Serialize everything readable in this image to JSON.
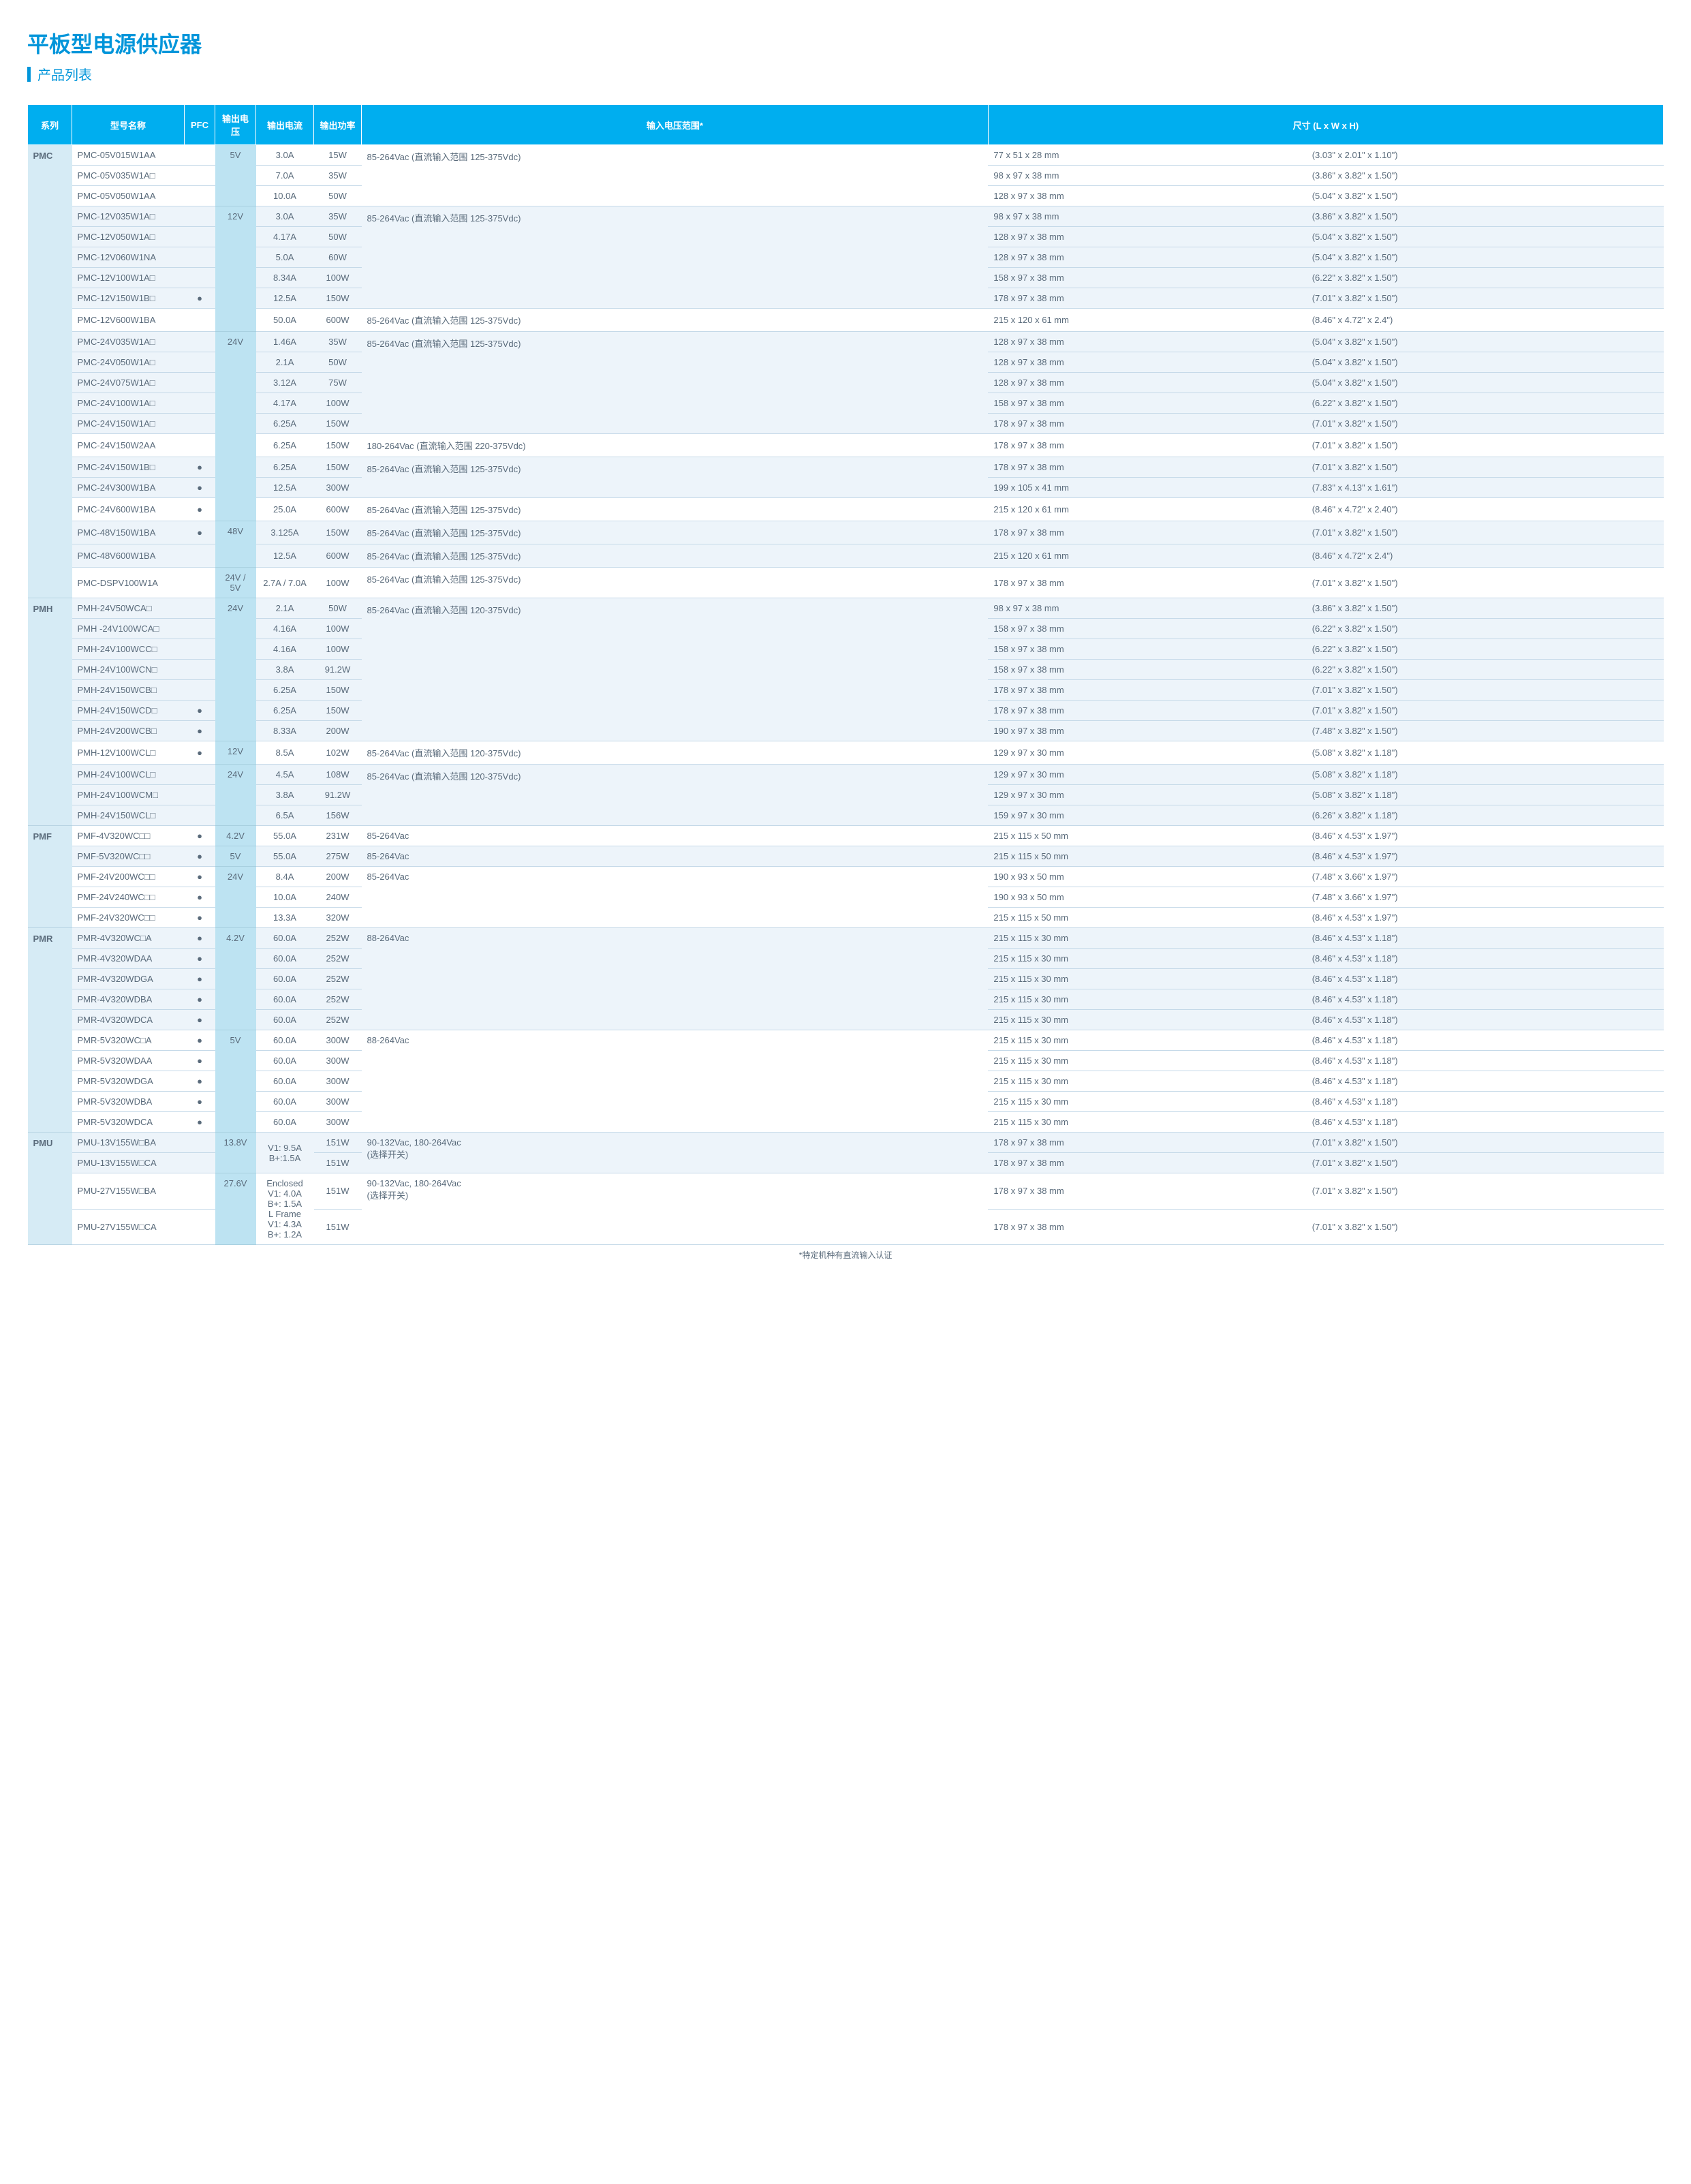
{
  "title": "平板型电源供应器",
  "subtitle": "产品列表",
  "footnote": "*特定机种有直流输入认证",
  "headers": {
    "series": "系列",
    "model": "型号名称",
    "pfc": "PFC",
    "voltage": "输出电压",
    "current": "输出电流",
    "power": "输出功率",
    "input": "输入电压范围*",
    "dim": "尺寸 (L x W x H)"
  },
  "colors": {
    "primary": "#0095da",
    "header_bg": "#00aeef",
    "series_bg": "#d6ebf5",
    "voltage_bg": "#bde3f2",
    "alt_row": "#edf4fa",
    "border": "#c5d9e8",
    "text": "#5a6b7b"
  },
  "series": [
    {
      "name": "PMC",
      "voltageGroups": [
        {
          "voltage": "5V",
          "rows": [
            {
              "model": "PMC-05V015W1AA",
              "pfc": "",
              "current": "3.0A",
              "power": "15W",
              "input": "85-264Vac (直流输入范围 125-375Vdc)",
              "input_span": 3,
              "mm": "77 x 51 x 28 mm",
              "in": "(3.03\" x 2.01\" x 1.10\")"
            },
            {
              "model": "PMC-05V035W1A□",
              "pfc": "",
              "current": "7.0A",
              "power": "35W",
              "mm": "98 x 97 x 38 mm",
              "in": "(3.86\" x 3.82\" x 1.50\")"
            },
            {
              "model": "PMC-05V050W1AA",
              "pfc": "",
              "current": "10.0A",
              "power": "50W",
              "mm": "128 x 97 x 38 mm",
              "in": "(5.04\" x 3.82\" x 1.50\")"
            }
          ]
        },
        {
          "voltage": "12V",
          "rows": [
            {
              "model": "PMC-12V035W1A□",
              "pfc": "",
              "current": "3.0A",
              "power": "35W",
              "input": "85-264Vac (直流输入范围 125-375Vdc)",
              "input_span": 5,
              "mm": "98 x 97 x 38 mm",
              "in": "(3.86\" x 3.82\" x 1.50\")",
              "alt": true
            },
            {
              "model": "PMC-12V050W1A□",
              "pfc": "",
              "current": "4.17A",
              "power": "50W",
              "mm": "128 x 97 x 38 mm",
              "in": "(5.04\" x 3.82\" x 1.50\")",
              "alt": true
            },
            {
              "model": "PMC-12V060W1NA",
              "pfc": "",
              "current": "5.0A",
              "power": "60W",
              "mm": "128 x 97 x 38 mm",
              "in": "(5.04\" x 3.82\" x 1.50\")",
              "alt": true
            },
            {
              "model": "PMC-12V100W1A□",
              "pfc": "",
              "current": "8.34A",
              "power": "100W",
              "mm": "158 x 97 x 38 mm",
              "in": "(6.22\" x 3.82\" x 1.50\")",
              "alt": true
            },
            {
              "model": "PMC-12V150W1B□",
              "pfc": "●",
              "current": "12.5A",
              "power": "150W",
              "mm": "178 x 97 x 38 mm",
              "in": "(7.01\" x 3.82\" x 1.50\")",
              "alt": true
            },
            {
              "model": "PMC-12V600W1BA",
              "pfc": "",
              "current": "50.0A",
              "power": "600W",
              "input": "85-264Vac (直流输入范围 125-375Vdc)",
              "input_span": 1,
              "mm": "215 x 120 x 61 mm",
              "in": "(8.46\" x 4.72\" x 2.4\")"
            }
          ]
        },
        {
          "voltage": "24V",
          "rows": [
            {
              "model": "PMC-24V035W1A□",
              "pfc": "",
              "current": "1.46A",
              "power": "35W",
              "input": "85-264Vac (直流输入范围 125-375Vdc)",
              "input_span": 5,
              "mm": "128 x 97 x 38 mm",
              "in": "(5.04\" x 3.82\" x 1.50\")",
              "alt": true
            },
            {
              "model": "PMC-24V050W1A□",
              "pfc": "",
              "current": "2.1A",
              "power": "50W",
              "mm": "128 x 97 x 38 mm",
              "in": "(5.04\" x 3.82\" x 1.50\")",
              "alt": true
            },
            {
              "model": "PMC-24V075W1A□",
              "pfc": "",
              "current": "3.12A",
              "power": "75W",
              "mm": "128 x 97 x 38 mm",
              "in": "(5.04\" x 3.82\" x 1.50\")",
              "alt": true
            },
            {
              "model": "PMC-24V100W1A□",
              "pfc": "",
              "current": "4.17A",
              "power": "100W",
              "mm": "158 x 97 x 38 mm",
              "in": "(6.22\" x 3.82\" x 1.50\")",
              "alt": true
            },
            {
              "model": "PMC-24V150W1A□",
              "pfc": "",
              "current": "6.25A",
              "power": "150W",
              "mm": "178 x 97 x 38 mm",
              "in": "(7.01\" x 3.82\" x 1.50\")",
              "alt": true
            },
            {
              "model": "PMC-24V150W2AA",
              "pfc": "",
              "current": "6.25A",
              "power": "150W",
              "input": "180-264Vac (直流输入范围 220-375Vdc)",
              "input_span": 1,
              "mm": "178 x 97 x 38 mm",
              "in": "(7.01\" x 3.82\" x 1.50\")"
            },
            {
              "model": "PMC-24V150W1B□",
              "pfc": "●",
              "current": "6.25A",
              "power": "150W",
              "input": "85-264Vac (直流输入范围 125-375Vdc)",
              "input_span": 2,
              "mm": "178 x 97 x 38 mm",
              "in": "(7.01\" x 3.82\" x 1.50\")",
              "alt": true
            },
            {
              "model": "PMC-24V300W1BA",
              "pfc": "●",
              "current": "12.5A",
              "power": "300W",
              "mm": "199 x 105 x 41 mm",
              "in": "(7.83\" x 4.13\" x 1.61\")",
              "alt": true
            },
            {
              "model": "PMC-24V600W1BA",
              "pfc": "●",
              "current": "25.0A",
              "power": "600W",
              "input": "85-264Vac (直流输入范围 125-375Vdc)",
              "input_span": 1,
              "mm": "215 x 120 x 61 mm",
              "in": "(8.46\" x 4.72\" x 2.40\")"
            }
          ]
        },
        {
          "voltage": "48V",
          "rows": [
            {
              "model": "PMC-48V150W1BA",
              "pfc": "●",
              "current": "3.125A",
              "power": "150W",
              "input": "85-264Vac (直流输入范围 125-375Vdc)",
              "input_span": 1,
              "mm": "178 x 97 x 38 mm",
              "in": "(7.01\" x 3.82\" x 1.50\")",
              "alt": true
            },
            {
              "model": "PMC-48V600W1BA",
              "pfc": "",
              "current": "12.5A",
              "power": "600W",
              "input": "85-264Vac (直流输入范围 125-375Vdc)",
              "input_span": 1,
              "mm": "215 x 120 x 61 mm",
              "in": "(8.46\" x 4.72\" x 2.4\")",
              "alt": true
            }
          ]
        },
        {
          "voltage": "24V / 5V",
          "rows": [
            {
              "model": "PMC-DSPV100W1A",
              "pfc": "",
              "current": "2.7A / 7.0A",
              "power": "100W",
              "input": "85-264Vac (直流输入范围 125-375Vdc)",
              "input_span": 1,
              "mm": "178 x 97 x 38 mm",
              "in": "(7.01\" x 3.82\" x 1.50\")"
            }
          ]
        }
      ]
    },
    {
      "name": "PMH",
      "voltageGroups": [
        {
          "voltage": "24V",
          "rows": [
            {
              "model": "PMH-24V50WCA□",
              "pfc": "",
              "current": "2.1A",
              "power": "50W",
              "input": "85-264Vac (直流输入范围 120-375Vdc)",
              "input_span": 7,
              "mm": "98 x 97 x 38 mm",
              "in": "(3.86\" x 3.82\" x 1.50\")",
              "alt": true
            },
            {
              "model": "PMH -24V100WCA□",
              "pfc": "",
              "current": "4.16A",
              "power": "100W",
              "mm": "158 x 97 x 38 mm",
              "in": "(6.22\" x 3.82\" x 1.50\")",
              "alt": true
            },
            {
              "model": "PMH-24V100WCC□",
              "pfc": "",
              "current": "4.16A",
              "power": "100W",
              "mm": "158 x 97 x 38 mm",
              "in": "(6.22\" x 3.82\" x 1.50\")",
              "alt": true
            },
            {
              "model": "PMH-24V100WCN□",
              "pfc": "",
              "current": "3.8A",
              "power": "91.2W",
              "mm": "158 x 97 x 38 mm",
              "in": "(6.22\" x 3.82\" x 1.50\")",
              "alt": true
            },
            {
              "model": "PMH-24V150WCB□",
              "pfc": "",
              "current": "6.25A",
              "power": "150W",
              "mm": "178 x 97 x 38 mm",
              "in": "(7.01\" x 3.82\" x 1.50\")",
              "alt": true
            },
            {
              "model": "PMH-24V150WCD□",
              "pfc": "●",
              "current": "6.25A",
              "power": "150W",
              "mm": "178 x 97 x 38 mm",
              "in": "(7.01\" x 3.82\" x 1.50\")",
              "alt": true
            },
            {
              "model": "PMH-24V200WCB□",
              "pfc": "●",
              "current": "8.33A",
              "power": "200W",
              "mm": "190 x 97 x 38 mm",
              "in": "(7.48\" x 3.82\" x 1.50\")",
              "alt": true
            }
          ]
        },
        {
          "voltage": "12V",
          "rows": [
            {
              "model": "PMH-12V100WCL□",
              "pfc": "●",
              "current": "8.5A",
              "power": "102W",
              "input": "85-264Vac (直流输入范围 120-375Vdc)",
              "input_span": 1,
              "mm": "129 x 97 x 30 mm",
              "in": "(5.08\" x 3.82\" x 1.18\")"
            }
          ]
        },
        {
          "voltage": "24V",
          "rows": [
            {
              "model": "PMH-24V100WCL□",
              "pfc": "",
              "current": "4.5A",
              "power": "108W",
              "input": "85-264Vac (直流输入范围 120-375Vdc)",
              "input_span": 3,
              "mm": "129 x 97 x 30 mm",
              "in": "(5.08\" x 3.82\" x 1.18\")",
              "alt": true
            },
            {
              "model": "PMH-24V100WCM□",
              "pfc": "",
              "current": "3.8A",
              "power": "91.2W",
              "mm": "129 x 97 x 30 mm",
              "in": "(5.08\" x 3.82\" x 1.18\")",
              "alt": true
            },
            {
              "model": "PMH-24V150WCL□",
              "pfc": "",
              "current": "6.5A",
              "power": "156W",
              "mm": "159 x 97 x 30 mm",
              "in": "(6.26\" x 3.82\" x 1.18\")",
              "alt": true
            }
          ]
        }
      ]
    },
    {
      "name": "PMF",
      "voltageGroups": [
        {
          "voltage": "4.2V",
          "rows": [
            {
              "model": "PMF-4V320WC□□",
              "pfc": "●",
              "current": "55.0A",
              "power": "231W",
              "input": "85-264Vac",
              "input_span": 1,
              "mm": "215 x 115 x 50 mm",
              "in": "(8.46\" x 4.53\" x 1.97\")"
            }
          ]
        },
        {
          "voltage": "5V",
          "rows": [
            {
              "model": "PMF-5V320WC□□",
              "pfc": "●",
              "current": "55.0A",
              "power": "275W",
              "input": "85-264Vac",
              "input_span": 1,
              "mm": "215 x 115 x 50 mm",
              "in": "(8.46\" x 4.53\" x 1.97\")",
              "alt": true
            }
          ]
        },
        {
          "voltage": "24V",
          "rows": [
            {
              "model": "PMF-24V200WC□□",
              "pfc": "●",
              "current": "8.4A",
              "power": "200W",
              "input": "85-264Vac",
              "input_span": 3,
              "mm": "190 x 93 x 50 mm",
              "in": "(7.48\" x 3.66\" x 1.97\")"
            },
            {
              "model": "PMF-24V240WC□□",
              "pfc": "●",
              "current": "10.0A",
              "power": "240W",
              "mm": "190 x 93 x 50 mm",
              "in": "(7.48\" x 3.66\" x 1.97\")"
            },
            {
              "model": "PMF-24V320WC□□",
              "pfc": "●",
              "current": "13.3A",
              "power": "320W",
              "mm": "215 x 115 x 50 mm",
              "in": "(8.46\" x 4.53\" x 1.97\")"
            }
          ]
        }
      ]
    },
    {
      "name": "PMR",
      "voltageGroups": [
        {
          "voltage": "4.2V",
          "rows": [
            {
              "model": "PMR-4V320WC□A",
              "pfc": "●",
              "current": "60.0A",
              "power": "252W",
              "input": "88-264Vac",
              "input_span": 5,
              "mm": "215 x 115 x 30 mm",
              "in": "(8.46\" x 4.53\" x 1.18\")",
              "alt": true
            },
            {
              "model": "PMR-4V320WDAA",
              "pfc": "●",
              "current": "60.0A",
              "power": "252W",
              "mm": "215 x 115 x 30 mm",
              "in": "(8.46\" x 4.53\" x 1.18\")",
              "alt": true
            },
            {
              "model": "PMR-4V320WDGA",
              "pfc": "●",
              "current": "60.0A",
              "power": "252W",
              "mm": "215 x 115 x 30 mm",
              "in": "(8.46\" x 4.53\" x 1.18\")",
              "alt": true
            },
            {
              "model": "PMR-4V320WDBA",
              "pfc": "●",
              "current": "60.0A",
              "power": "252W",
              "mm": "215 x 115 x 30 mm",
              "in": "(8.46\" x 4.53\" x 1.18\")",
              "alt": true
            },
            {
              "model": "PMR-4V320WDCA",
              "pfc": "●",
              "current": "60.0A",
              "power": "252W",
              "mm": "215 x 115 x 30 mm",
              "in": "(8.46\" x 4.53\" x 1.18\")",
              "alt": true
            }
          ]
        },
        {
          "voltage": "5V",
          "rows": [
            {
              "model": "PMR-5V320WC□A",
              "pfc": "●",
              "current": "60.0A",
              "power": "300W",
              "input": "88-264Vac",
              "input_span": 5,
              "mm": "215 x 115 x 30 mm",
              "in": "(8.46\" x 4.53\" x 1.18\")"
            },
            {
              "model": "PMR-5V320WDAA",
              "pfc": "●",
              "current": "60.0A",
              "power": "300W",
              "mm": "215 x 115 x 30 mm",
              "in": "(8.46\" x 4.53\" x 1.18\")"
            },
            {
              "model": "PMR-5V320WDGA",
              "pfc": "●",
              "current": "60.0A",
              "power": "300W",
              "mm": "215 x 115 x 30 mm",
              "in": "(8.46\" x 4.53\" x 1.18\")"
            },
            {
              "model": "PMR-5V320WDBA",
              "pfc": "●",
              "current": "60.0A",
              "power": "300W",
              "mm": "215 x 115 x 30 mm",
              "in": "(8.46\" x 4.53\" x 1.18\")"
            },
            {
              "model": "PMR-5V320WDCA",
              "pfc": "●",
              "current": "60.0A",
              "power": "300W",
              "mm": "215 x 115 x 30 mm",
              "in": "(8.46\" x 4.53\" x 1.18\")"
            }
          ]
        }
      ]
    },
    {
      "name": "PMU",
      "voltageGroups": [
        {
          "voltage": "13.8V",
          "rows": [
            {
              "model": "PMU-13V155W□BA",
              "pfc": "",
              "current": "V1: 9.5A\nB+:1.5A",
              "current_span": 2,
              "power": "151W",
              "input": "90-132Vac, 180-264Vac\n(选择开关)",
              "input_span": 2,
              "mm": "178 x 97 x 38 mm",
              "in": "(7.01\" x 3.82\" x 1.50\")",
              "alt": true
            },
            {
              "model": "PMU-13V155W□CA",
              "pfc": "",
              "power": "151W",
              "mm": "178 x 97 x 38 mm",
              "in": "(7.01\" x 3.82\" x 1.50\")",
              "alt": true
            }
          ]
        },
        {
          "voltage": "27.6V",
          "rows": [
            {
              "model": "PMU-27V155W□BA",
              "pfc": "",
              "current": "Enclosed\nV1: 4.0A\nB+: 1.5A\nL Frame\nV1: 4.3A\nB+: 1.2A",
              "current_span": 2,
              "power": "151W",
              "input": "90-132Vac, 180-264Vac\n(选择开关)",
              "input_span": 2,
              "mm": "178 x 97 x 38 mm",
              "in": "(7.01\" x 3.82\" x 1.50\")"
            },
            {
              "model": "PMU-27V155W□CA",
              "pfc": "",
              "power": "151W",
              "mm": "178 x 97 x 38 mm",
              "in": "(7.01\" x 3.82\" x 1.50\")"
            }
          ]
        }
      ]
    }
  ]
}
